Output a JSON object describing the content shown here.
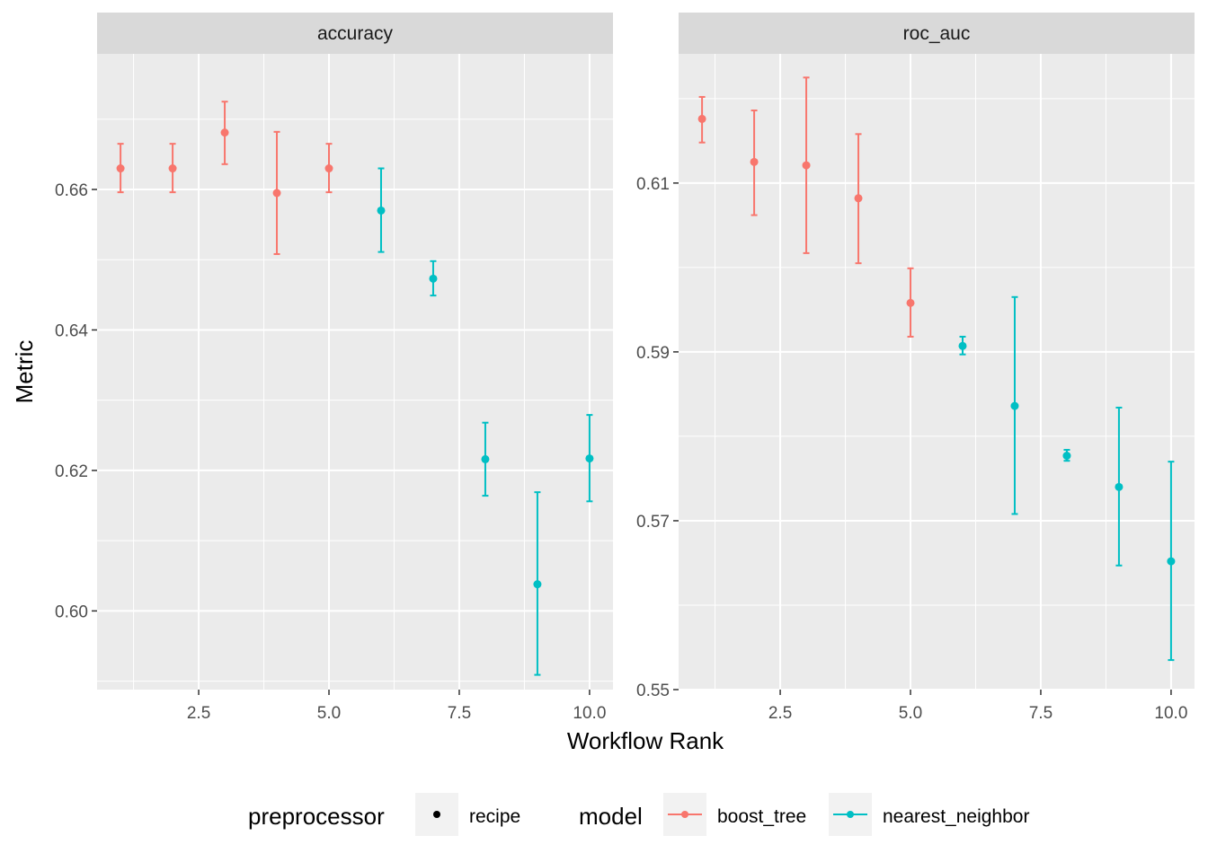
{
  "chart_data": {
    "type": "scatter",
    "xlabel": "Workflow Rank",
    "ylabel": "Metric",
    "legend": {
      "position": "bottom",
      "preprocessor": {
        "title": "preprocessor",
        "items": [
          "recipe"
        ]
      },
      "model": {
        "title": "model",
        "items": [
          "boost_tree",
          "nearest_neighbor"
        ]
      }
    },
    "colors": {
      "boost_tree": "#F8766D",
      "nearest_neighbor": "#00BFC4",
      "recipe": "#000000"
    },
    "facets": [
      {
        "label": "accuracy",
        "xlim": [
          0.55,
          10.45
        ],
        "ylim": [
          0.5888,
          0.6793
        ],
        "x_ticks": [
          2.5,
          5.0,
          7.5,
          10.0
        ],
        "x_tick_labels": [
          "2.5",
          "5.0",
          "7.5",
          "10.0"
        ],
        "y_ticks": [
          0.6,
          0.62,
          0.64,
          0.66
        ],
        "y_tick_labels": [
          "0.60",
          "0.62",
          "0.64",
          "0.66"
        ],
        "points": [
          {
            "x": 1,
            "y": 0.663,
            "lo": 0.6596,
            "hi": 0.6665,
            "model": "boost_tree"
          },
          {
            "x": 2,
            "y": 0.663,
            "lo": 0.6596,
            "hi": 0.6665,
            "model": "boost_tree"
          },
          {
            "x": 3,
            "y": 0.6681,
            "lo": 0.6636,
            "hi": 0.6725,
            "model": "boost_tree"
          },
          {
            "x": 4,
            "y": 0.6595,
            "lo": 0.6508,
            "hi": 0.6682,
            "model": "boost_tree"
          },
          {
            "x": 5,
            "y": 0.663,
            "lo": 0.6596,
            "hi": 0.6665,
            "model": "boost_tree"
          },
          {
            "x": 6,
            "y": 0.657,
            "lo": 0.6511,
            "hi": 0.663,
            "model": "nearest_neighbor"
          },
          {
            "x": 7,
            "y": 0.6473,
            "lo": 0.6449,
            "hi": 0.6498,
            "model": "nearest_neighbor"
          },
          {
            "x": 8,
            "y": 0.6216,
            "lo": 0.6164,
            "hi": 0.6268,
            "model": "nearest_neighbor"
          },
          {
            "x": 9,
            "y": 0.6038,
            "lo": 0.5909,
            "hi": 0.6169,
            "model": "nearest_neighbor"
          },
          {
            "x": 10,
            "y": 0.6217,
            "lo": 0.6156,
            "hi": 0.6279,
            "model": "nearest_neighbor"
          }
        ]
      },
      {
        "label": "roc_auc",
        "xlim": [
          0.55,
          10.45
        ],
        "ylim": [
          0.55,
          0.6253
        ],
        "x_ticks": [
          2.5,
          5.0,
          7.5,
          10.0
        ],
        "x_tick_labels": [
          "2.5",
          "5.0",
          "7.5",
          "10.0"
        ],
        "y_ticks": [
          0.55,
          0.57,
          0.59,
          0.61
        ],
        "y_tick_labels": [
          "0.55",
          "0.57",
          "0.59",
          "0.61"
        ],
        "points": [
          {
            "x": 1,
            "y": 0.6176,
            "lo": 0.6148,
            "hi": 0.6202,
            "model": "boost_tree"
          },
          {
            "x": 2,
            "y": 0.6125,
            "lo": 0.6062,
            "hi": 0.6186,
            "model": "boost_tree"
          },
          {
            "x": 3,
            "y": 0.6121,
            "lo": 0.6017,
            "hi": 0.6225,
            "model": "boost_tree"
          },
          {
            "x": 4,
            "y": 0.6082,
            "lo": 0.6005,
            "hi": 0.6158,
            "model": "boost_tree"
          },
          {
            "x": 5,
            "y": 0.5958,
            "lo": 0.5918,
            "hi": 0.5999,
            "model": "boost_tree"
          },
          {
            "x": 6,
            "y": 0.5907,
            "lo": 0.5897,
            "hi": 0.5918,
            "model": "nearest_neighbor"
          },
          {
            "x": 7,
            "y": 0.5836,
            "lo": 0.5708,
            "hi": 0.5965,
            "model": "nearest_neighbor"
          },
          {
            "x": 8,
            "y": 0.5777,
            "lo": 0.5771,
            "hi": 0.5784,
            "model": "nearest_neighbor"
          },
          {
            "x": 9,
            "y": 0.574,
            "lo": 0.5647,
            "hi": 0.5834,
            "model": "nearest_neighbor"
          },
          {
            "x": 10,
            "y": 0.5652,
            "lo": 0.5535,
            "hi": 0.577,
            "model": "nearest_neighbor"
          }
        ]
      }
    ]
  }
}
